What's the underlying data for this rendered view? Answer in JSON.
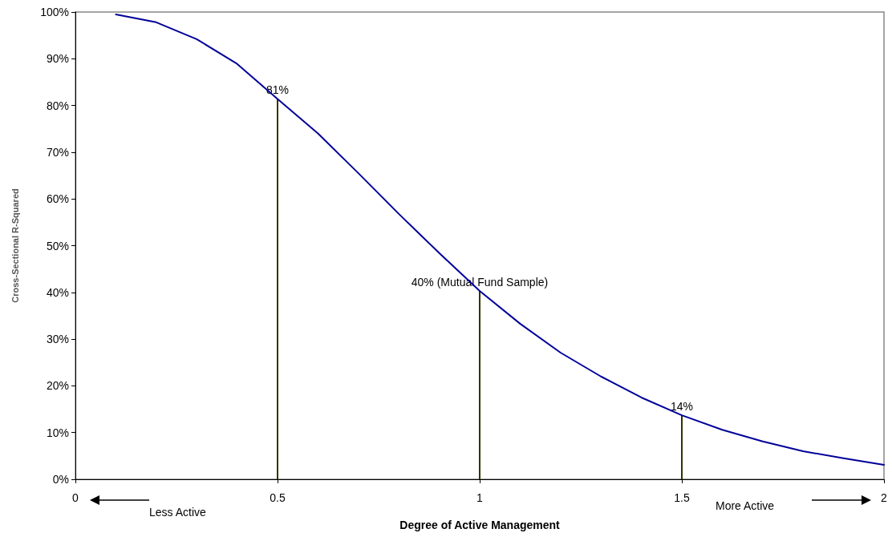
{
  "chart_data": {
    "type": "line",
    "xlabel": "Degree of Active Management",
    "ylabel": "Cross-Sectional R-Squared",
    "x": [
      0.1,
      0.2,
      0.3,
      0.4,
      0.5,
      0.6,
      0.7,
      0.8,
      0.9,
      1.0,
      1.1,
      1.2,
      1.3,
      1.4,
      1.5,
      1.6,
      1.7,
      1.8,
      1.9,
      2.0
    ],
    "series": [
      {
        "color": "#000099",
        "values": [
          99.5,
          97.8,
          94.2,
          88.9,
          81.4,
          74,
          65.5,
          56.8,
          48.4,
          40.3,
          33.3,
          27.1,
          22,
          17.5,
          13.7,
          10.6,
          8.1,
          6,
          4.5,
          3.1
        ]
      },
      {
        "type": "bar",
        "color": "#333300",
        "x": [
          0.5,
          1,
          1.5
        ],
        "values": [
          81.4,
          40.3,
          13.7
        ],
        "value_labels": [
          "81%",
          "40% (Mutual Fund Sample)",
          "14%"
        ]
      }
    ],
    "xlim": [
      0,
      2
    ],
    "xticks": [
      0,
      0.5,
      1,
      1.5,
      2
    ],
    "ylim": [
      0,
      100
    ],
    "yticks": [
      {
        "value": 0,
        "label": "0%"
      },
      {
        "value": 10,
        "label": "10%"
      },
      {
        "value": 20,
        "label": "20%"
      },
      {
        "value": 30,
        "label": "30%"
      },
      {
        "value": 40,
        "label": "40%"
      },
      {
        "value": 50,
        "label": "50%"
      },
      {
        "value": 60,
        "label": "60%"
      },
      {
        "value": 70,
        "label": "70%"
      },
      {
        "value": 80,
        "label": "80%"
      },
      {
        "value": 90,
        "label": "90%"
      },
      {
        "value": 100,
        "label": "100%"
      }
    ],
    "annotations": [
      "Less Active",
      "More Active"
    ],
    "grid": false,
    "marker": "none",
    "line_style": "solid"
  }
}
